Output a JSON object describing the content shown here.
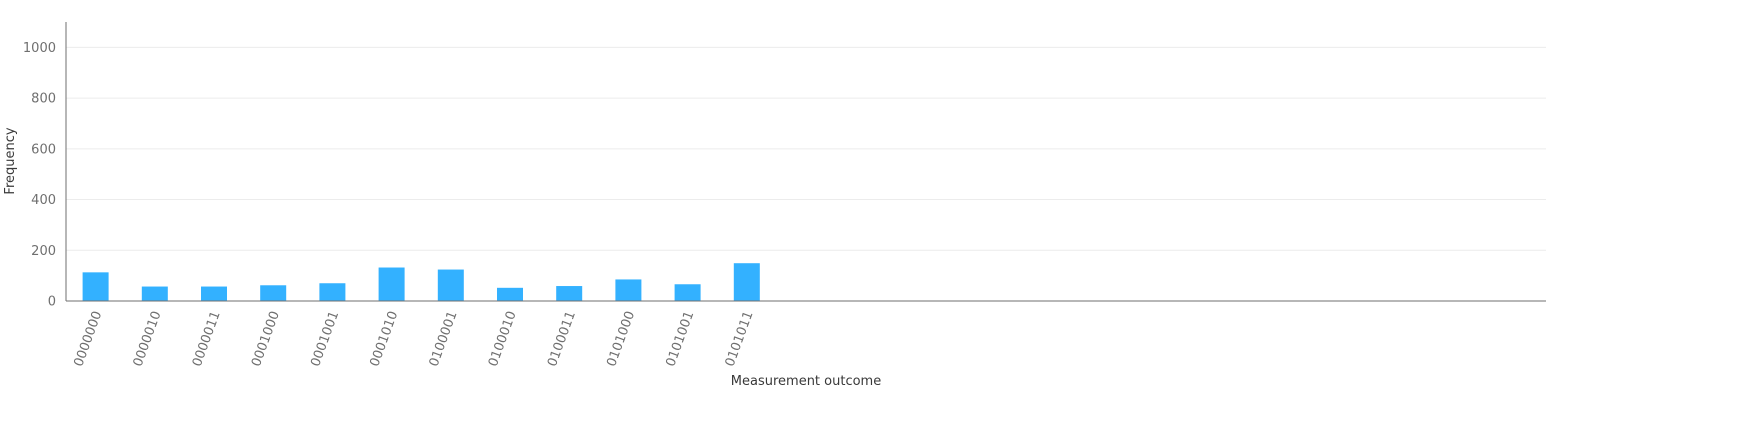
{
  "chart_data": {
    "type": "bar",
    "title": "",
    "xlabel": "Measurement outcome",
    "ylabel": "Frequency",
    "ylim": [
      0,
      1100
    ],
    "yticks": [
      0,
      200,
      400,
      600,
      800,
      1000
    ],
    "grid": true,
    "bar_color": "#33b1ff",
    "categories": [
      "0000000",
      "0000010",
      "0000011",
      "0001000",
      "0001001",
      "0001010",
      "0100001",
      "0100010",
      "0100011",
      "0101000",
      "0101001",
      "0101011"
    ],
    "values": [
      113,
      57,
      57,
      62,
      70,
      132,
      124,
      52,
      59,
      85,
      66,
      149
    ],
    "slots": 25
  }
}
